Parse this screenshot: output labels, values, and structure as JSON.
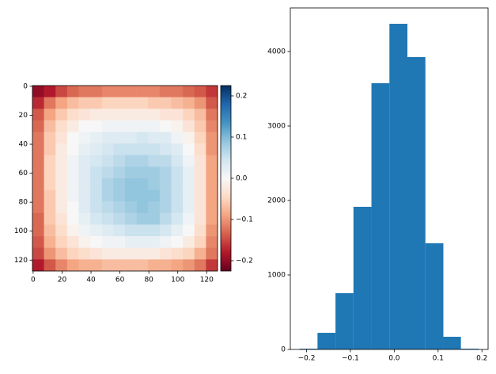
{
  "chart_data": [
    {
      "type": "heatmap",
      "xlim": [
        -0.5,
        127.5
      ],
      "ylim": [
        127.5,
        -0.5
      ],
      "xticks": [
        0,
        20,
        40,
        60,
        80,
        100,
        120
      ],
      "yticks": [
        0,
        20,
        40,
        60,
        80,
        100,
        120
      ],
      "colormap": "RdBu",
      "clim": [
        -0.225,
        0.225
      ],
      "cticks": [
        {
          "value": -0.2,
          "label": "−0.2"
        },
        {
          "value": -0.1,
          "label": "−0.1"
        },
        {
          "value": 0.0,
          "label": "0.0"
        },
        {
          "value": 0.1,
          "label": "0.1"
        },
        {
          "value": 0.2,
          "label": "0.2"
        }
      ],
      "matrix": [
        [
          -0.2,
          -0.18,
          -0.15,
          -0.13,
          -0.12,
          -0.12,
          -0.11,
          -0.11,
          -0.11,
          -0.11,
          -0.11,
          -0.12,
          -0.12,
          -0.13,
          -0.14,
          -0.16
        ],
        [
          -0.17,
          -0.12,
          -0.09,
          -0.07,
          -0.06,
          -0.06,
          -0.05,
          -0.05,
          -0.05,
          -0.05,
          -0.06,
          -0.06,
          -0.07,
          -0.08,
          -0.1,
          -0.14
        ],
        [
          -0.14,
          -0.09,
          -0.06,
          -0.04,
          -0.03,
          -0.02,
          -0.02,
          -0.02,
          -0.02,
          -0.02,
          -0.02,
          -0.03,
          -0.03,
          -0.05,
          -0.07,
          -0.12
        ],
        [
          -0.13,
          -0.07,
          -0.04,
          -0.02,
          0.0,
          0.0,
          0.01,
          0.01,
          0.01,
          0.01,
          0.01,
          0.0,
          -0.01,
          -0.03,
          -0.06,
          -0.11
        ],
        [
          -0.12,
          -0.06,
          -0.03,
          0.0,
          0.01,
          0.02,
          0.03,
          0.03,
          0.03,
          0.04,
          0.03,
          0.03,
          0.01,
          -0.01,
          -0.05,
          -0.1
        ],
        [
          -0.12,
          -0.06,
          -0.02,
          0.0,
          0.02,
          0.03,
          0.04,
          0.05,
          0.05,
          0.05,
          0.05,
          0.04,
          0.03,
          0.0,
          -0.04,
          -0.1
        ],
        [
          -0.12,
          -0.05,
          -0.02,
          0.01,
          0.03,
          0.04,
          0.05,
          0.06,
          0.07,
          0.07,
          0.06,
          0.06,
          0.04,
          0.01,
          -0.03,
          -0.09
        ],
        [
          -0.12,
          -0.05,
          -0.02,
          0.01,
          0.03,
          0.05,
          0.06,
          0.07,
          0.08,
          0.08,
          0.08,
          0.07,
          0.05,
          0.02,
          -0.03,
          -0.09
        ],
        [
          -0.12,
          -0.05,
          -0.02,
          0.01,
          0.03,
          0.05,
          0.07,
          0.08,
          0.09,
          0.09,
          0.08,
          0.07,
          0.05,
          0.02,
          -0.03,
          -0.09
        ],
        [
          -0.12,
          -0.06,
          -0.02,
          0.01,
          0.03,
          0.05,
          0.07,
          0.08,
          0.09,
          0.09,
          0.09,
          0.07,
          0.05,
          0.02,
          -0.03,
          -0.09
        ],
        [
          -0.12,
          -0.06,
          -0.02,
          0.0,
          0.03,
          0.05,
          0.06,
          0.07,
          0.08,
          0.09,
          0.08,
          0.07,
          0.05,
          0.02,
          -0.03,
          -0.09
        ],
        [
          -0.13,
          -0.06,
          -0.03,
          0.0,
          0.02,
          0.04,
          0.05,
          0.06,
          0.07,
          0.08,
          0.08,
          0.06,
          0.04,
          0.01,
          -0.03,
          -0.09
        ],
        [
          -0.13,
          -0.07,
          -0.04,
          -0.01,
          0.01,
          0.02,
          0.03,
          0.04,
          0.05,
          0.05,
          0.05,
          0.04,
          0.02,
          0.0,
          -0.04,
          -0.1
        ],
        [
          -0.14,
          -0.08,
          -0.05,
          -0.03,
          -0.01,
          0.0,
          0.01,
          0.01,
          0.02,
          0.02,
          0.02,
          0.01,
          0.0,
          -0.02,
          -0.05,
          -0.11
        ],
        [
          -0.15,
          -0.1,
          -0.07,
          -0.05,
          -0.04,
          -0.03,
          -0.02,
          -0.02,
          -0.02,
          -0.02,
          -0.02,
          -0.03,
          -0.04,
          -0.05,
          -0.08,
          -0.12
        ],
        [
          -0.18,
          -0.14,
          -0.11,
          -0.09,
          -0.08,
          -0.08,
          -0.07,
          -0.07,
          -0.07,
          -0.07,
          -0.08,
          -0.08,
          -0.09,
          -0.1,
          -0.12,
          -0.16
        ]
      ]
    },
    {
      "type": "histogram",
      "bins": [
        -0.216,
        -0.175,
        -0.134,
        -0.093,
        -0.052,
        -0.011,
        0.03,
        0.071,
        0.112,
        0.152,
        0.193
      ],
      "values": [
        10,
        223,
        755,
        1915,
        3574,
        4372,
        3925,
        1425,
        170,
        10
      ],
      "color": "#1f77b4",
      "xlim": [
        -0.237,
        0.214
      ],
      "ylim": [
        0,
        4585
      ],
      "xticks": [
        {
          "value": -0.2,
          "label": "−0.2"
        },
        {
          "value": -0.1,
          "label": "−0.1"
        },
        {
          "value": 0.0,
          "label": "0.0"
        },
        {
          "value": 0.1,
          "label": "0.1"
        },
        {
          "value": 0.2,
          "label": "0.2"
        }
      ],
      "yticks": [
        0,
        1000,
        2000,
        3000,
        4000
      ]
    }
  ]
}
